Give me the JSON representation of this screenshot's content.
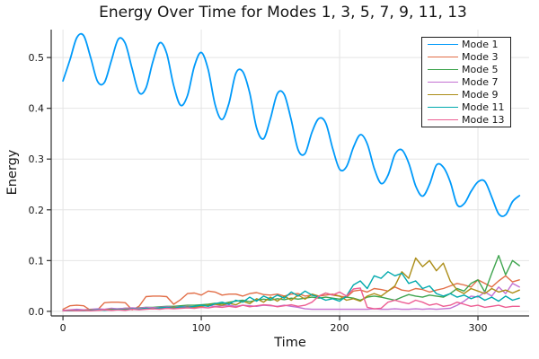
{
  "figure": {
    "background": "#ffffff",
    "grid_color": "#e4e4e4",
    "axis_color": "#2e2e2e",
    "text_color": "#151515"
  },
  "chart_data": {
    "type": "line",
    "title": "Energy Over Time for Modes 1, 3, 5, 7, 9, 11, 13",
    "xlabel": "Time",
    "ylabel": "Energy",
    "xlim": [
      -8.5,
      337
    ],
    "ylim": [
      -0.009,
      0.555
    ],
    "xticks": [
      0,
      100,
      200,
      300
    ],
    "xtick_labels": [
      "0",
      "100",
      "200",
      "300"
    ],
    "yticks": [
      0.0,
      0.1,
      0.2,
      0.3,
      0.4,
      0.5
    ],
    "ytick_labels": [
      "0.0",
      "0.1",
      "0.2",
      "0.3",
      "0.4",
      "0.5"
    ],
    "grid": true,
    "legend_position": "top-right",
    "x": [
      0,
      5,
      10,
      15,
      20,
      25,
      30,
      35,
      40,
      45,
      50,
      55,
      60,
      65,
      70,
      75,
      80,
      85,
      90,
      95,
      100,
      105,
      110,
      115,
      120,
      125,
      130,
      135,
      140,
      145,
      150,
      155,
      160,
      165,
      170,
      175,
      180,
      185,
      190,
      195,
      200,
      205,
      210,
      215,
      220,
      225,
      230,
      235,
      240,
      245,
      250,
      255,
      260,
      265,
      270,
      275,
      280,
      285,
      290,
      295,
      300,
      305,
      310,
      315,
      320,
      325,
      330
    ],
    "series": [
      {
        "name": "Mode 1",
        "color": "#009AFA",
        "smooth": true,
        "linewidth": 1.8,
        "values": [
          0.454,
          0.495,
          0.539,
          0.543,
          0.5,
          0.453,
          0.451,
          0.494,
          0.536,
          0.528,
          0.478,
          0.431,
          0.44,
          0.492,
          0.529,
          0.508,
          0.445,
          0.406,
          0.425,
          0.483,
          0.51,
          0.476,
          0.407,
          0.378,
          0.41,
          0.469,
          0.472,
          0.43,
          0.361,
          0.34,
          0.38,
          0.429,
          0.427,
          0.377,
          0.318,
          0.311,
          0.353,
          0.38,
          0.371,
          0.321,
          0.28,
          0.285,
          0.323,
          0.348,
          0.33,
          0.282,
          0.252,
          0.268,
          0.309,
          0.318,
          0.292,
          0.247,
          0.227,
          0.25,
          0.288,
          0.284,
          0.255,
          0.21,
          0.212,
          0.236,
          0.255,
          0.256,
          0.225,
          0.192,
          0.19,
          0.216,
          0.228
        ]
      },
      {
        "name": "Mode 3",
        "color": "#E26E47",
        "smooth": false,
        "linewidth": 1.4,
        "values": [
          0.004,
          0.011,
          0.012,
          0.011,
          0.002,
          0.003,
          0.017,
          0.018,
          0.018,
          0.017,
          0.003,
          0.01,
          0.029,
          0.03,
          0.03,
          0.029,
          0.014,
          0.023,
          0.035,
          0.036,
          0.032,
          0.04,
          0.038,
          0.032,
          0.034,
          0.034,
          0.03,
          0.035,
          0.037,
          0.033,
          0.032,
          0.034,
          0.03,
          0.034,
          0.035,
          0.03,
          0.032,
          0.03,
          0.032,
          0.034,
          0.03,
          0.028,
          0.04,
          0.042,
          0.038,
          0.045,
          0.043,
          0.04,
          0.048,
          0.042,
          0.04,
          0.045,
          0.043,
          0.038,
          0.042,
          0.045,
          0.05,
          0.055,
          0.052,
          0.048,
          0.062,
          0.055,
          0.048,
          0.06,
          0.07,
          0.058,
          0.062
        ]
      },
      {
        "name": "Mode 5",
        "color": "#3EA44E",
        "smooth": false,
        "linewidth": 1.4,
        "values": [
          0.001,
          0.001,
          0.001,
          0.002,
          0.002,
          0.003,
          0.003,
          0.004,
          0.005,
          0.006,
          0.006,
          0.007,
          0.008,
          0.008,
          0.009,
          0.01,
          0.01,
          0.011,
          0.012,
          0.012,
          0.013,
          0.014,
          0.016,
          0.015,
          0.018,
          0.02,
          0.022,
          0.019,
          0.022,
          0.024,
          0.022,
          0.025,
          0.023,
          0.026,
          0.024,
          0.026,
          0.028,
          0.026,
          0.028,
          0.026,
          0.024,
          0.028,
          0.026,
          0.022,
          0.028,
          0.03,
          0.028,
          0.025,
          0.022,
          0.028,
          0.033,
          0.03,
          0.028,
          0.032,
          0.03,
          0.028,
          0.035,
          0.045,
          0.04,
          0.055,
          0.062,
          0.038,
          0.075,
          0.11,
          0.072,
          0.1,
          0.09
        ]
      },
      {
        "name": "Mode 7",
        "color": "#C371D2",
        "smooth": false,
        "linewidth": 1.4,
        "values": [
          0.002,
          0.003,
          0.004,
          0.003,
          0.004,
          0.005,
          0.004,
          0.006,
          0.005,
          0.006,
          0.007,
          0.006,
          0.008,
          0.007,
          0.008,
          0.009,
          0.008,
          0.009,
          0.01,
          0.009,
          0.01,
          0.011,
          0.01,
          0.011,
          0.012,
          0.01,
          0.012,
          0.011,
          0.01,
          0.012,
          0.011,
          0.01,
          0.012,
          0.01,
          0.008,
          0.005,
          0.004,
          0.004,
          0.004,
          0.004,
          0.004,
          0.004,
          0.004,
          0.004,
          0.004,
          0.005,
          0.004,
          0.004,
          0.005,
          0.004,
          0.004,
          0.005,
          0.004,
          0.005,
          0.004,
          0.005,
          0.006,
          0.012,
          0.02,
          0.03,
          0.028,
          0.038,
          0.03,
          0.048,
          0.035,
          0.055,
          0.048
        ]
      },
      {
        "name": "Mode 9",
        "color": "#AC8D18",
        "smooth": false,
        "linewidth": 1.4,
        "values": [
          0.001,
          0.002,
          0.001,
          0.002,
          0.003,
          0.002,
          0.003,
          0.004,
          0.003,
          0.004,
          0.005,
          0.004,
          0.006,
          0.005,
          0.007,
          0.006,
          0.008,
          0.007,
          0.009,
          0.008,
          0.01,
          0.012,
          0.014,
          0.012,
          0.016,
          0.013,
          0.02,
          0.015,
          0.025,
          0.018,
          0.028,
          0.02,
          0.03,
          0.022,
          0.032,
          0.024,
          0.034,
          0.03,
          0.036,
          0.032,
          0.03,
          0.022,
          0.025,
          0.02,
          0.03,
          0.035,
          0.03,
          0.04,
          0.05,
          0.078,
          0.065,
          0.105,
          0.088,
          0.1,
          0.08,
          0.095,
          0.06,
          0.042,
          0.035,
          0.045,
          0.04,
          0.035,
          0.045,
          0.038,
          0.042,
          0.036,
          0.042
        ]
      },
      {
        "name": "Mode 11",
        "color": "#00A9AD",
        "smooth": false,
        "linewidth": 1.4,
        "values": [
          0.001,
          0.001,
          0.002,
          0.001,
          0.002,
          0.003,
          0.002,
          0.003,
          0.004,
          0.003,
          0.005,
          0.004,
          0.006,
          0.005,
          0.007,
          0.008,
          0.006,
          0.009,
          0.008,
          0.01,
          0.012,
          0.01,
          0.015,
          0.018,
          0.014,
          0.022,
          0.018,
          0.028,
          0.02,
          0.03,
          0.024,
          0.032,
          0.026,
          0.038,
          0.03,
          0.04,
          0.032,
          0.028,
          0.022,
          0.025,
          0.02,
          0.03,
          0.052,
          0.06,
          0.045,
          0.07,
          0.065,
          0.078,
          0.07,
          0.075,
          0.055,
          0.06,
          0.045,
          0.05,
          0.035,
          0.03,
          0.035,
          0.028,
          0.032,
          0.025,
          0.03,
          0.022,
          0.028,
          0.02,
          0.03,
          0.022,
          0.026
        ]
      },
      {
        "name": "Mode 13",
        "color": "#ED5E93",
        "smooth": false,
        "linewidth": 1.4,
        "values": [
          0.001,
          0.002,
          0.001,
          0.002,
          0.001,
          0.002,
          0.003,
          0.002,
          0.003,
          0.002,
          0.004,
          0.003,
          0.004,
          0.005,
          0.004,
          0.006,
          0.005,
          0.006,
          0.007,
          0.006,
          0.008,
          0.007,
          0.009,
          0.008,
          0.01,
          0.008,
          0.012,
          0.009,
          0.011,
          0.013,
          0.012,
          0.009,
          0.011,
          0.013,
          0.01,
          0.012,
          0.018,
          0.03,
          0.036,
          0.032,
          0.038,
          0.03,
          0.044,
          0.046,
          0.008,
          0.005,
          0.006,
          0.018,
          0.022,
          0.018,
          0.015,
          0.022,
          0.018,
          0.012,
          0.015,
          0.01,
          0.012,
          0.018,
          0.014,
          0.01,
          0.012,
          0.008,
          0.01,
          0.012,
          0.008,
          0.01,
          0.01
        ]
      }
    ]
  }
}
